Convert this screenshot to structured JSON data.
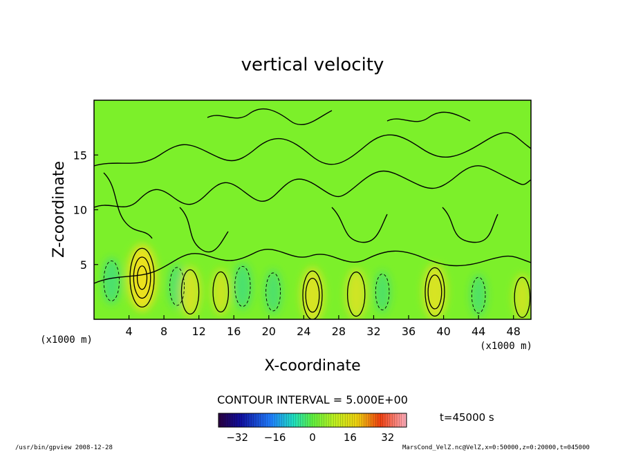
{
  "chart_data": {
    "type": "heatmap",
    "title": "vertical velocity",
    "xlabel": "X-coordinate",
    "ylabel": "Z-coordinate",
    "x_unit_left": "(x1000 m)",
    "x_unit_right": "(x1000 m)",
    "xlim": [
      0,
      50
    ],
    "ylim": [
      0,
      20
    ],
    "x_ticks": [
      "4",
      "8",
      "12",
      "16",
      "20",
      "24",
      "28",
      "32",
      "36",
      "40",
      "44",
      "48"
    ],
    "y_ticks": [
      "5",
      "10",
      "15"
    ],
    "contour_interval": "CONTOUR INTERVAL = 5.000E+00",
    "time_label": "t=45000 s",
    "colorbar": {
      "range": [
        -40,
        40
      ],
      "tick_labels": [
        "-32",
        "-16",
        "0",
        "16",
        "32"
      ]
    },
    "features": [
      {
        "x": 5.5,
        "z": 3.8,
        "value": 15
      },
      {
        "x": 9.5,
        "z": 3.0,
        "value": -5
      },
      {
        "x": 11.0,
        "z": 2.5,
        "value": 8
      },
      {
        "x": 14.5,
        "z": 2.5,
        "value": 6
      },
      {
        "x": 17.0,
        "z": 3.0,
        "value": -6
      },
      {
        "x": 20.5,
        "z": 2.5,
        "value": -5
      },
      {
        "x": 25.0,
        "z": 2.2,
        "value": 10
      },
      {
        "x": 30.0,
        "z": 2.3,
        "value": 8
      },
      {
        "x": 33.0,
        "z": 2.5,
        "value": -4
      },
      {
        "x": 39.0,
        "z": 2.5,
        "value": 10
      },
      {
        "x": 44.0,
        "z": 2.2,
        "value": -4
      },
      {
        "x": 49.0,
        "z": 2.0,
        "value": 6
      },
      {
        "x": 2.0,
        "z": 3.5,
        "value": -6
      }
    ]
  },
  "footer": {
    "left": "/usr/bin/gpview  2008-12-28",
    "right": "MarsCond_VelZ.nc@VelZ,x=0:50000,z=0:20000,t=045000"
  },
  "colors": {
    "background_field": "#7cf02a",
    "positive": "#f0e020",
    "negative": "#30d890"
  }
}
